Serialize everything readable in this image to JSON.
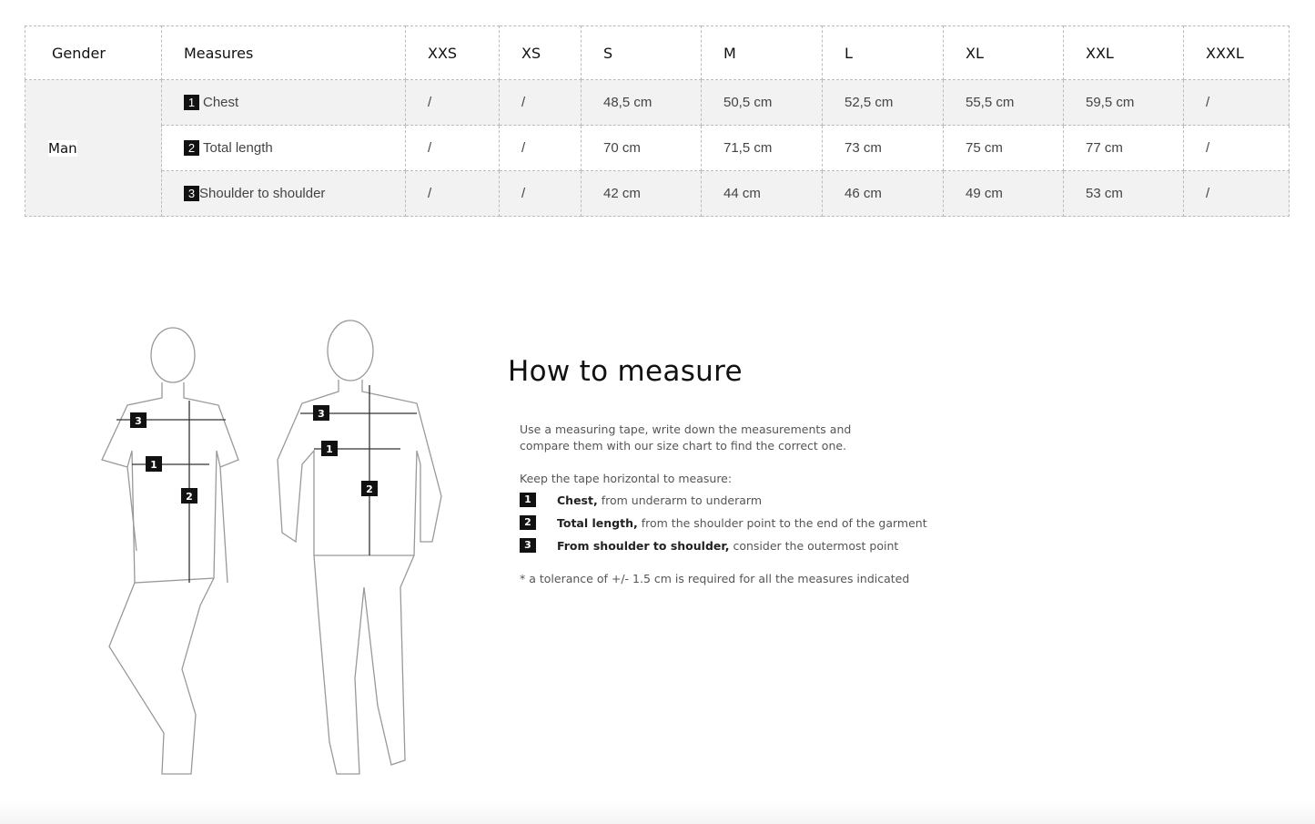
{
  "table": {
    "headers": [
      "Gender",
      "Measures",
      "XXS",
      "XS",
      "S",
      "M",
      "L",
      "XL",
      "XXL",
      "XXXL"
    ],
    "gender": "Man",
    "rows": [
      {
        "num": "1",
        "measure": "Chest",
        "values": [
          "/",
          "/",
          "48,5 cm",
          "50,5 cm",
          "52,5 cm",
          "55,5 cm",
          "59,5 cm",
          "/"
        ]
      },
      {
        "num": "2",
        "measure": "Total length",
        "values": [
          "/",
          "/",
          "70 cm",
          "71,5 cm",
          "73 cm",
          "75 cm",
          "77 cm",
          "/"
        ]
      },
      {
        "num": "3",
        "measure": "Shoulder to shoulder",
        "values": [
          "/",
          "/",
          "42 cm",
          "44 cm",
          "46 cm",
          "49 cm",
          "53 cm",
          "/"
        ]
      }
    ]
  },
  "guide": {
    "title": "How to measure",
    "intro_1": "Use a measuring tape, write down the measurements and",
    "intro_2": "compare them with our size chart to find the correct one.",
    "keep": "Keep the tape horizontal to measure:",
    "items": [
      {
        "num": "1",
        "bold": "Chest,",
        "text": "from underarm to underarm"
      },
      {
        "num": "2",
        "bold": "Total length,",
        "text": "from the shoulder point to the end of the garment"
      },
      {
        "num": "3",
        "bold": "From shoulder to shoulder,",
        "text": "consider the outermost point"
      }
    ],
    "note": "* a tolerance of +/- 1.5 cm is required for all the measures indicated"
  },
  "figure_markers": [
    "1",
    "2",
    "3"
  ]
}
